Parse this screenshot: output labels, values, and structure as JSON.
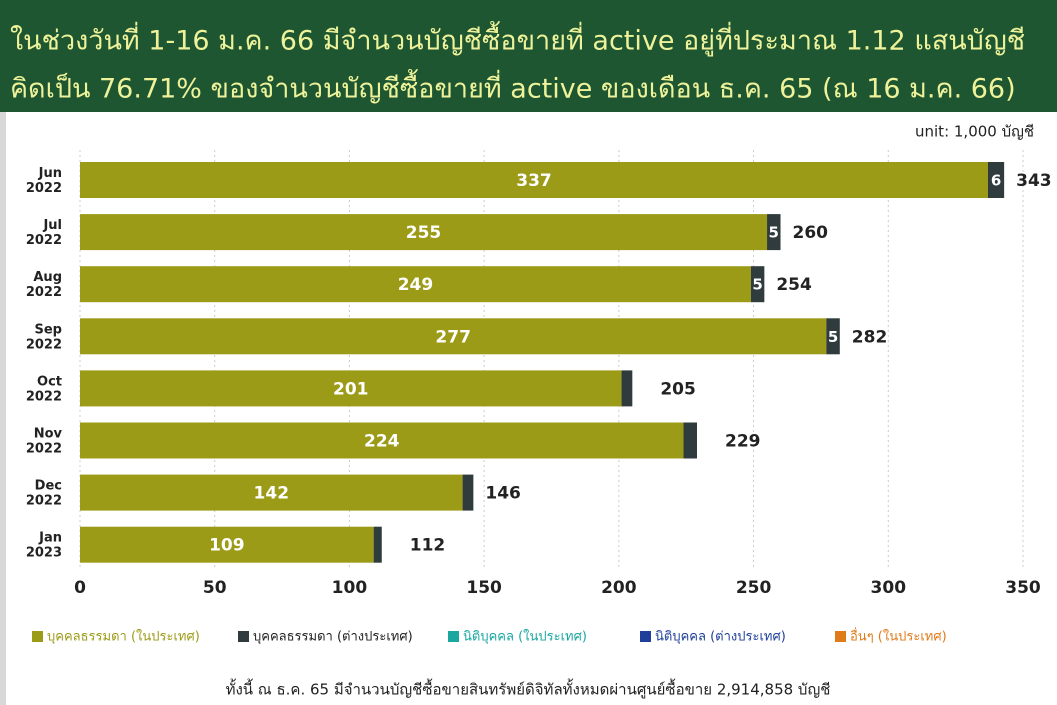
{
  "chart_data": {
    "type": "bar_stacked_horizontal",
    "title": [
      "ในช่วงวันที่ 1-16 ม.ค. 66 มีจำนวนบัญชีซื้อขายที่ active อยู่ที่ประมาณ 1.12 แสนบัญชี",
      "คิดเป็น 76.71% ของจำนวนบัญชีซื้อขายที่ active ของเดือน ธ.ค. 65 (ณ 16 ม.ค. 66)"
    ],
    "unit": "unit: 1,000 บัญชี",
    "categories": [
      "Jun 2022",
      "Jul 2022",
      "Aug 2022",
      "Sep 2022",
      "Oct 2022",
      "Nov 2022",
      "Dec 2022",
      "Jan 2023"
    ],
    "series": [
      {
        "name": "บุคคลธรรมดา (ในประเทศ)",
        "color": "#9c9b18",
        "values": [
          337,
          255,
          249,
          277,
          201,
          224,
          142,
          109
        ]
      },
      {
        "name": "บุคคลธรรมดา (ต่างประเทศ)",
        "color": "#2f3b3c",
        "values": [
          6,
          5,
          5,
          5,
          4,
          5,
          4,
          3
        ],
        "value_labels": [
          "6",
          "5",
          "5",
          "5",
          null,
          null,
          null,
          null
        ]
      },
      {
        "name": "นิติบุคคล (ในประเทศ)",
        "color": "#1aa7a0",
        "values": [
          0,
          0,
          0,
          0,
          0,
          0,
          0,
          0
        ],
        "value_labels": [
          null,
          null,
          null,
          null,
          null,
          null,
          null,
          null
        ]
      },
      {
        "name": "นิติบุคคล (ต่างประเทศ)",
        "color": "#1f3f9a",
        "values": [
          0,
          0,
          0,
          0,
          0,
          0,
          0,
          0
        ],
        "value_labels": [
          null,
          null,
          null,
          null,
          null,
          null,
          null,
          null
        ]
      },
      {
        "name": "อื่นๆ (ในประเทศ)",
        "color": "#e07b1a",
        "values": [
          0,
          0,
          0,
          0,
          0,
          0,
          0,
          0
        ],
        "value_labels": [
          null,
          null,
          null,
          null,
          null,
          null,
          null,
          null
        ]
      }
    ],
    "totals": [
      343,
      260,
      254,
      282,
      205,
      229,
      146,
      112
    ],
    "xlim": [
      0,
      350
    ],
    "xticks": [
      0,
      50,
      100,
      150,
      200,
      250,
      300,
      350
    ],
    "grid": true,
    "footnote": "ทั้งนี้ ณ ธ.ค. 65 มีจำนวนบัญชีซื้อขายสินทรัพย์ดิจิทัลทั้งหมดผ่านศูนย์ซื้อขาย 2,914,858 บัญชี"
  }
}
